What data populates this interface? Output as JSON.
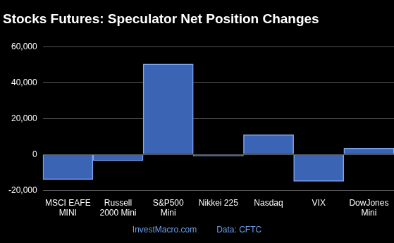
{
  "chart_data": {
    "type": "bar",
    "title": "Stocks Futures: Speculator Net Position Changes",
    "categories": [
      "MSCI EAFE MINI",
      "Russell 2000 Mini",
      "S&P500 Mini",
      "Nikkei 225",
      "Nasdaq",
      "VIX",
      "DowJones Mini"
    ],
    "values": [
      -14000,
      -3500,
      50500,
      -800,
      11000,
      -15000,
      3500
    ],
    "color": "#3c64b4",
    "ylim": [
      -20000,
      60000
    ],
    "yticks": [
      {
        "value": -20000,
        "label": "-20,000"
      },
      0,
      {
        "value": 20000,
        "label": "20,000"
      },
      {
        "value": 40000,
        "label": "40,000"
      },
      {
        "value": 60000,
        "label": "60,000"
      }
    ],
    "grid": true,
    "annotations": [
      "InvestMacro.com",
      "Data: CFTC"
    ]
  }
}
